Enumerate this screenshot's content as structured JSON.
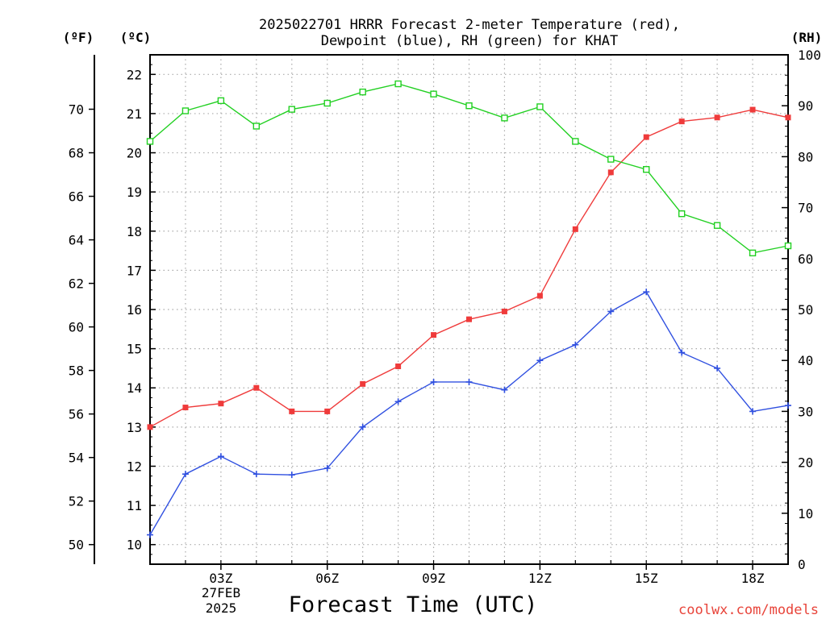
{
  "chart_data": {
    "type": "line",
    "title_line1": "2025022701 HRRR Forecast 2-meter Temperature (red),",
    "title_line2": "Dewpoint (blue), RH (green) for KHAT",
    "xlabel": "Forecast Time (UTC)",
    "y_left_outer_label": "(ºF)",
    "y_left_inner_label": "(ºC)",
    "y_right_label": "(RH)",
    "watermark": "coolwx.com/models",
    "date_label_day": "27FEB",
    "date_label_year": "2025",
    "x_hours": [
      1,
      2,
      3,
      4,
      5,
      6,
      7,
      8,
      9,
      10,
      11,
      12,
      13,
      14,
      15,
      16,
      17,
      18,
      19
    ],
    "x_tick_hours": [
      3,
      6,
      9,
      12,
      15,
      18
    ],
    "x_tick_labels": [
      "03Z",
      "06Z",
      "09Z",
      "12Z",
      "15Z",
      "18Z"
    ],
    "xlim": [
      1,
      19
    ],
    "celsius_axis": {
      "ylim": [
        9.5,
        22.5
      ],
      "ticks": [
        10,
        11,
        12,
        13,
        14,
        15,
        16,
        17,
        18,
        19,
        20,
        21,
        22
      ]
    },
    "fahrenheit_axis": {
      "ticks": [
        50,
        52,
        54,
        56,
        58,
        60,
        62,
        64,
        66,
        68,
        70
      ]
    },
    "rh_axis": {
      "ylim": [
        0,
        100
      ],
      "ticks": [
        0,
        10,
        20,
        30,
        40,
        50,
        60,
        70,
        80,
        90,
        100
      ]
    },
    "grid": true,
    "series": [
      {
        "key": "temperature",
        "color": "#ef3b3b",
        "marker": "filled-square",
        "axis": "celsius",
        "values": [
          13.0,
          13.5,
          13.6,
          14.0,
          13.4,
          13.4,
          14.1,
          14.55,
          15.35,
          15.75,
          15.95,
          16.35,
          18.05,
          19.5,
          20.4,
          20.8,
          20.9,
          21.1,
          20.9
        ]
      },
      {
        "key": "dewpoint",
        "color": "#3050e0",
        "marker": "plus",
        "axis": "celsius",
        "values": [
          10.25,
          11.8,
          12.25,
          11.8,
          11.78,
          11.95,
          13.0,
          13.65,
          14.15,
          14.15,
          13.95,
          14.7,
          15.1,
          15.95,
          16.45,
          14.9,
          14.5,
          13.4,
          13.55
        ]
      },
      {
        "key": "rh",
        "color": "#22d022",
        "marker": "open-square",
        "axis": "rh",
        "values": [
          83,
          89,
          91,
          86,
          89.3,
          90.5,
          92.7,
          94.3,
          92.3,
          90.0,
          87.6,
          89.8,
          83.0,
          79.5,
          77.5,
          68.8,
          66.5,
          61.1,
          62.5
        ]
      }
    ]
  }
}
